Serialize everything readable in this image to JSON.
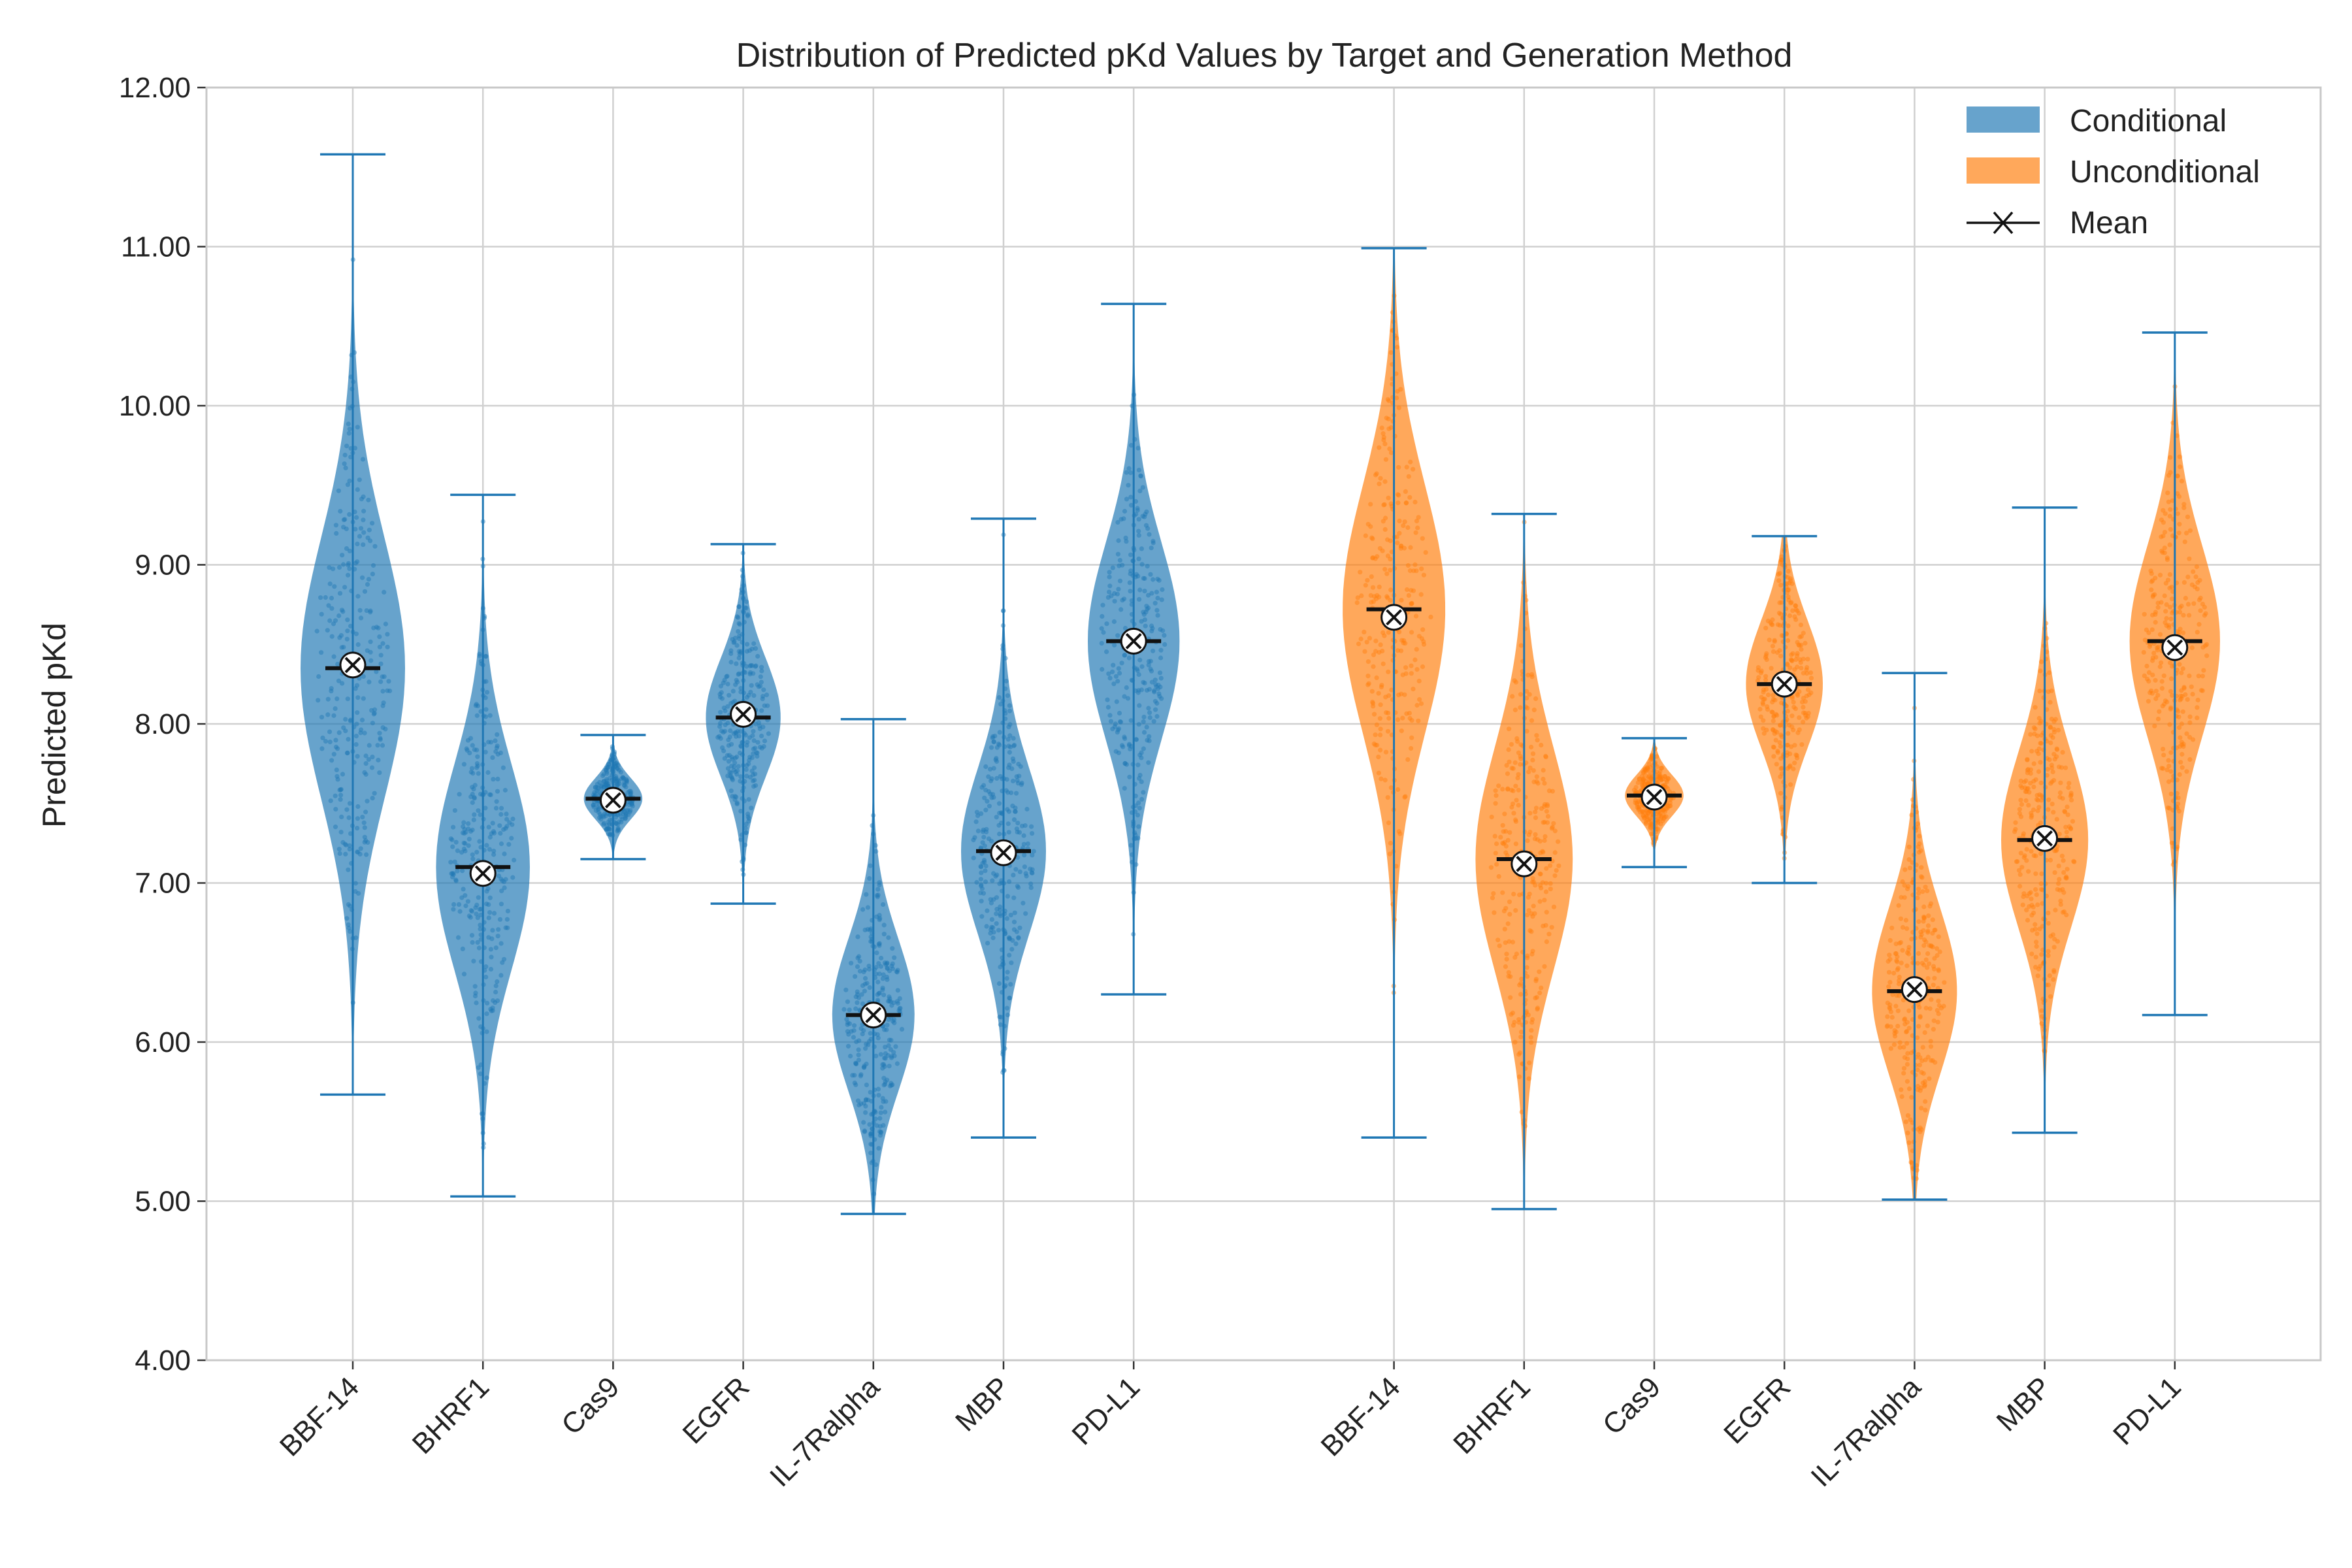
{
  "chart_data": {
    "type": "violin",
    "title": "Distribution of Predicted pKd Values by Target and Generation Method",
    "xlabel": "",
    "ylabel": "Predicted pKd",
    "ylim": [
      4.0,
      12.0
    ],
    "yticks": [
      "4.00",
      "5.00",
      "6.00",
      "7.00",
      "8.00",
      "9.00",
      "10.00",
      "11.00",
      "12.00"
    ],
    "grid": true,
    "legend": {
      "placement": "top-right",
      "entries": [
        {
          "label": "Conditional",
          "kind": "patch",
          "color": "#1f77b4"
        },
        {
          "label": "Unconditional",
          "kind": "patch",
          "color": "#ff7f0e"
        },
        {
          "label": "Mean",
          "kind": "marker"
        }
      ]
    },
    "groups": [
      {
        "name": "Conditional",
        "color": "#1f77b4",
        "categories": [
          "BBF-14",
          "BHRF1",
          "Cas9",
          "EGFR",
          "IL-7Ralpha",
          "MBP",
          "PD-L1"
        ],
        "min": [
          5.67,
          5.03,
          7.15,
          6.87,
          4.92,
          5.4,
          6.3
        ],
        "max": [
          11.58,
          9.44,
          7.93,
          9.13,
          8.03,
          9.29,
          10.64
        ],
        "median": [
          8.35,
          7.1,
          7.53,
          8.04,
          6.17,
          7.2,
          8.52
        ],
        "mean": [
          8.37,
          7.06,
          7.52,
          8.06,
          6.17,
          7.19,
          8.52
        ],
        "std": [
          0.82,
          0.65,
          0.13,
          0.37,
          0.48,
          0.52,
          0.62
        ]
      },
      {
        "name": "Unconditional",
        "color": "#ff7f0e",
        "categories": [
          "BBF-14",
          "BHRF1",
          "Cas9",
          "EGFR",
          "IL-7Ralpha",
          "MBP",
          "PD-L1"
        ],
        "min": [
          5.4,
          4.95,
          7.1,
          7.0,
          5.01,
          5.43,
          6.17
        ],
        "max": [
          10.99,
          9.32,
          7.91,
          9.18,
          8.32,
          9.36,
          10.46
        ],
        "median": [
          8.72,
          7.15,
          7.55,
          8.25,
          6.32,
          7.27,
          8.52
        ],
        "mean": [
          8.67,
          7.12,
          7.54,
          8.25,
          6.33,
          7.28,
          8.48
        ],
        "std": [
          0.78,
          0.7,
          0.13,
          0.4,
          0.52,
          0.55,
          0.6
        ]
      }
    ]
  },
  "colors": {
    "conditional": "#1f77b4",
    "unconditional": "#ff7f0e",
    "grid": "#d0d0d0",
    "axes": "#c8c8c8"
  }
}
